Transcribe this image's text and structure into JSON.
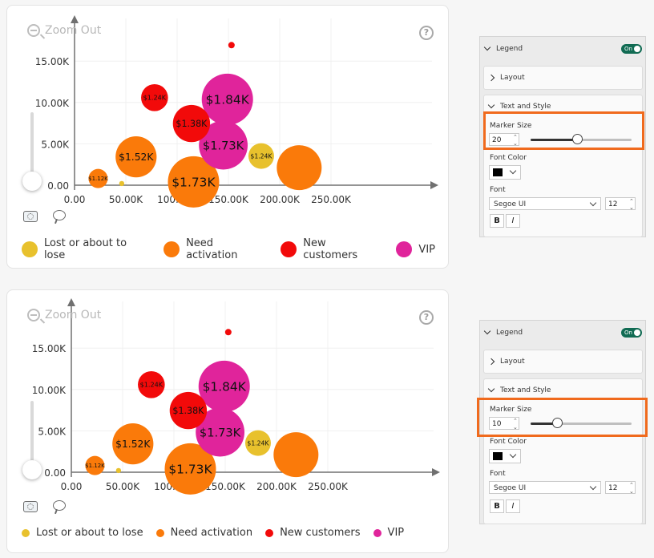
{
  "chart_data": [
    {
      "type": "scatter",
      "title": "",
      "xlabel": "",
      "ylabel": "",
      "xlim": [
        0,
        250000
      ],
      "ylim": [
        0,
        17000
      ],
      "x_ticks": [
        "0.00",
        "50.00K",
        "100.00K",
        "150.00K",
        "200.00K",
        "250.00K"
      ],
      "y_ticks": [
        "0.00",
        "5.00K",
        "10.00K",
        "15.00K"
      ],
      "grid": true,
      "legend_position": "bottom",
      "legend_marker_size": 20,
      "series": [
        {
          "name": "Lost or about to lose",
          "color": "#e8c12d",
          "points": [
            {
              "x": 46000,
              "y": 200,
              "size": 4,
              "label": ""
            },
            {
              "x": 182000,
              "y": 3500,
              "size": 20,
              "label": "$1.24K"
            }
          ]
        },
        {
          "name": "Need activation",
          "color": "#fa7a0a",
          "points": [
            {
              "x": 23000,
              "y": 800,
              "size": 15,
              "label": "$1.12K"
            },
            {
              "x": 60000,
              "y": 3400,
              "size": 32,
              "label": "$1.52K"
            },
            {
              "x": 116000,
              "y": 400,
              "size": 40,
              "label": "$1.73K"
            },
            {
              "x": 219000,
              "y": 2100,
              "size": 35,
              "label": ""
            }
          ]
        },
        {
          "name": "New customers",
          "color": "#f20a0a",
          "points": [
            {
              "x": 78000,
              "y": 10500,
              "size": 21,
              "label": "$1.24K"
            },
            {
              "x": 114000,
              "y": 7400,
              "size": 29,
              "label": "$1.38K"
            },
            {
              "x": 153000,
              "y": 16800,
              "size": 5,
              "label": ""
            }
          ]
        },
        {
          "name": "VIP",
          "color": "#e0249b",
          "points": [
            {
              "x": 149000,
              "y": 10300,
              "size": 40,
              "label": "$1.84K"
            },
            {
              "x": 145000,
              "y": 4800,
              "size": 38,
              "label": "$1.73K"
            }
          ]
        }
      ]
    },
    {
      "type": "scatter",
      "title": "",
      "xlabel": "",
      "ylabel": "",
      "xlim": [
        0,
        250000
      ],
      "ylim": [
        0,
        17000
      ],
      "x_ticks": [
        "0.00",
        "50.00K",
        "100.00K",
        "150.00K",
        "200.00K",
        "250.00K"
      ],
      "y_ticks": [
        "0.00",
        "5.00K",
        "10.00K",
        "15.00K"
      ],
      "grid": true,
      "legend_position": "bottom",
      "legend_marker_size": 10,
      "series": [
        {
          "name": "Lost or about to lose",
          "color": "#e8c12d",
          "points": [
            {
              "x": 46000,
              "y": 200,
              "size": 4,
              "label": ""
            },
            {
              "x": 182000,
              "y": 3500,
              "size": 20,
              "label": "$1.24K"
            }
          ]
        },
        {
          "name": "Need activation",
          "color": "#fa7a0a",
          "points": [
            {
              "x": 23000,
              "y": 800,
              "size": 15,
              "label": "$1.12K"
            },
            {
              "x": 60000,
              "y": 3400,
              "size": 32,
              "label": "$1.52K"
            },
            {
              "x": 116000,
              "y": 400,
              "size": 40,
              "label": "$1.73K"
            },
            {
              "x": 219000,
              "y": 2100,
              "size": 35,
              "label": ""
            }
          ]
        },
        {
          "name": "New customers",
          "color": "#f20a0a",
          "points": [
            {
              "x": 78000,
              "y": 10500,
              "size": 21,
              "label": "$1.24K"
            },
            {
              "x": 114000,
              "y": 7400,
              "size": 29,
              "label": "$1.38K"
            },
            {
              "x": 153000,
              "y": 16800,
              "size": 5,
              "label": ""
            }
          ]
        },
        {
          "name": "VIP",
          "color": "#e0249b",
          "points": [
            {
              "x": 149000,
              "y": 10300,
              "size": 40,
              "label": "$1.84K"
            },
            {
              "x": 145000,
              "y": 4800,
              "size": 38,
              "label": "$1.73K"
            }
          ]
        }
      ]
    }
  ],
  "ui": {
    "zoom_out": "Zoom Out",
    "help": "?"
  },
  "panels": [
    {
      "legend": "Legend",
      "toggle": "On",
      "layout": "Layout",
      "text_style": "Text and Style",
      "marker_size_label": "Marker Size",
      "marker_size": "20",
      "marker_fraction": 0.4,
      "font_color": "Font Color",
      "font_label": "Font",
      "font": "Segoe UI",
      "font_size": "12",
      "bold": "B",
      "italic": "I"
    },
    {
      "legend": "Legend",
      "toggle": "On",
      "layout": "Layout",
      "text_style": "Text and Style",
      "marker_size_label": "Marker Size",
      "marker_size": "10",
      "marker_fraction": 0.2,
      "font_color": "Font Color",
      "font_label": "Font",
      "font": "Segoe UI",
      "font_size": "12",
      "bold": "B",
      "italic": "I"
    }
  ]
}
